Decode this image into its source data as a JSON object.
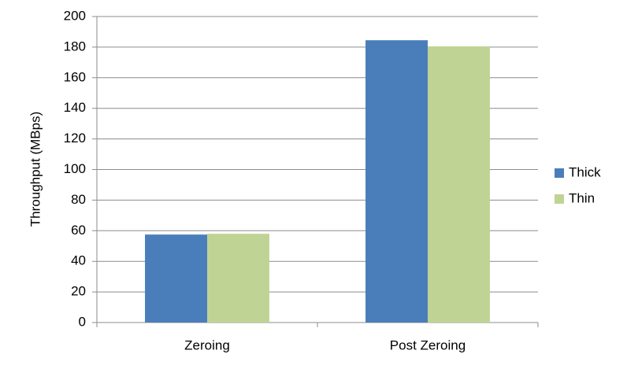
{
  "chart_data": {
    "type": "bar",
    "y_label": "Throughput (MBps)",
    "categories": [
      "Zeroing",
      "Post Zeroing"
    ],
    "series": [
      {
        "name": "Thick",
        "color": "#4a7ebb",
        "values": [
          57.5,
          184.5
        ]
      },
      {
        "name": "Thin",
        "color": "#bfd494",
        "values": [
          58,
          180.5
        ]
      }
    ],
    "ylim": [
      0,
      200
    ],
    "yticks": [
      0,
      20,
      40,
      60,
      80,
      100,
      120,
      140,
      160,
      180,
      200
    ],
    "grid": true,
    "legend": "right"
  }
}
